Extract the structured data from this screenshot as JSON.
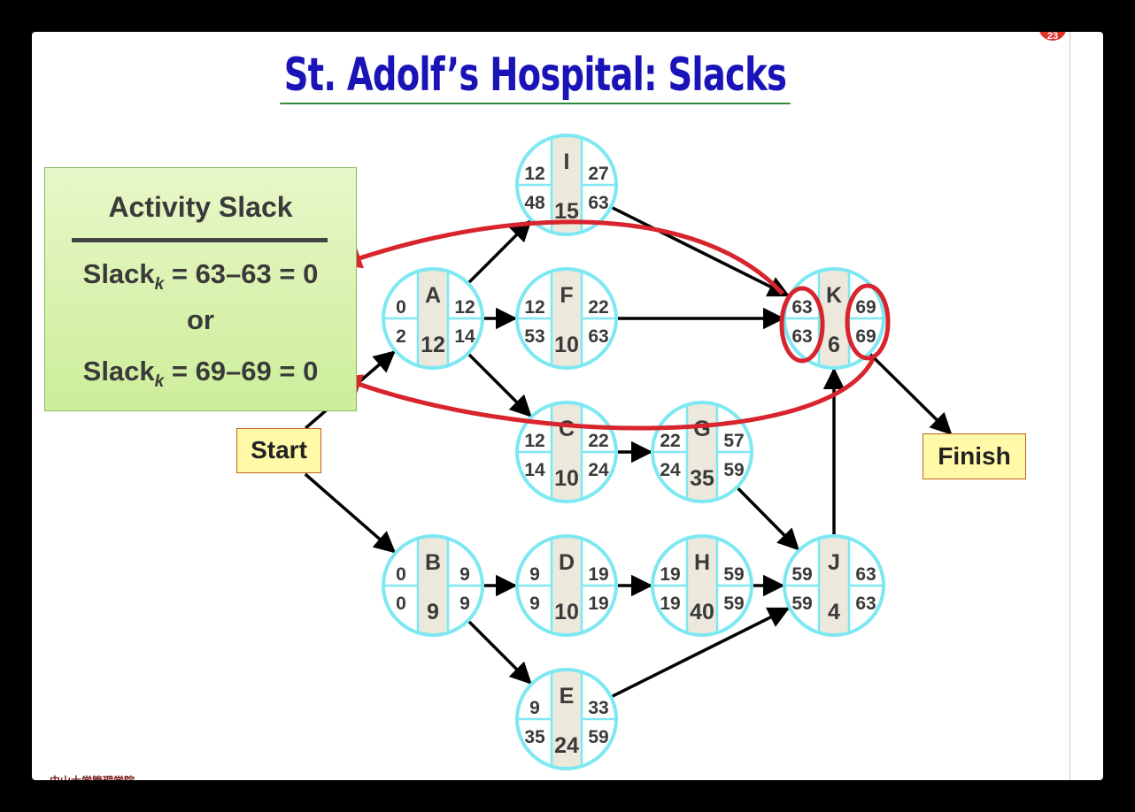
{
  "title": "St. Adolf’s Hospital: Slacks",
  "page_number": "23",
  "slack_box": {
    "heading": "Activity Slack",
    "line1_prefix": "Slack",
    "line1_sub": "k",
    "line1_rest": " = 63–63 = 0",
    "or": "or",
    "line2_prefix": "Slack",
    "line2_sub": "k",
    "line2_rest": " = 69–69 = 0"
  },
  "labels": {
    "start": "Start",
    "finish": "Finish"
  },
  "footer_logo_text": "中山大学管理学院",
  "colors": {
    "title": "#1a14b8",
    "node_ring": "#7de8f2",
    "node_fill": "#ffffff",
    "node_center": "#ece9dc",
    "annotation_red": "#d8242c",
    "label_fill": "#fff9a8",
    "label_border": "#c0621e",
    "slack_box_fill": "#d8f2aa"
  },
  "nodes": [
    {
      "id": "A",
      "duration": "12",
      "es": "0",
      "ls": "2",
      "ef": "12",
      "lf": "14"
    },
    {
      "id": "B",
      "duration": "9",
      "es": "0",
      "ls": "0",
      "ef": "9",
      "lf": "9"
    },
    {
      "id": "C",
      "duration": "10",
      "es": "12",
      "ls": "14",
      "ef": "22",
      "lf": "24"
    },
    {
      "id": "D",
      "duration": "10",
      "es": "9",
      "ls": "9",
      "ef": "19",
      "lf": "19"
    },
    {
      "id": "E",
      "duration": "24",
      "es": "9",
      "ls": "35",
      "ef": "33",
      "lf": "59"
    },
    {
      "id": "F",
      "duration": "10",
      "es": "12",
      "ls": "53",
      "ef": "22",
      "lf": "63"
    },
    {
      "id": "G",
      "duration": "35",
      "es": "22",
      "ls": "24",
      "ef": "57",
      "lf": "59"
    },
    {
      "id": "H",
      "duration": "40",
      "es": "19",
      "ls": "19",
      "ef": "59",
      "lf": "59"
    },
    {
      "id": "I",
      "duration": "15",
      "es": "12",
      "ls": "48",
      "ef": "27",
      "lf": "63"
    },
    {
      "id": "J",
      "duration": "4",
      "es": "59",
      "ls": "59",
      "ef": "63",
      "lf": "63"
    },
    {
      "id": "K",
      "duration": "6",
      "es": "63",
      "ls": "63",
      "ef": "69",
      "lf": "69"
    }
  ],
  "edges": [
    {
      "from": "Start",
      "to": "A"
    },
    {
      "from": "Start",
      "to": "B"
    },
    {
      "from": "A",
      "to": "I"
    },
    {
      "from": "A",
      "to": "F"
    },
    {
      "from": "A",
      "to": "C"
    },
    {
      "from": "B",
      "to": "D"
    },
    {
      "from": "B",
      "to": "E"
    },
    {
      "from": "C",
      "to": "G"
    },
    {
      "from": "D",
      "to": "H"
    },
    {
      "from": "G",
      "to": "J"
    },
    {
      "from": "H",
      "to": "J"
    },
    {
      "from": "E",
      "to": "J"
    },
    {
      "from": "I",
      "to": "K"
    },
    {
      "from": "F",
      "to": "K"
    },
    {
      "from": "J",
      "to": "K"
    },
    {
      "from": "K",
      "to": "Finish"
    }
  ]
}
